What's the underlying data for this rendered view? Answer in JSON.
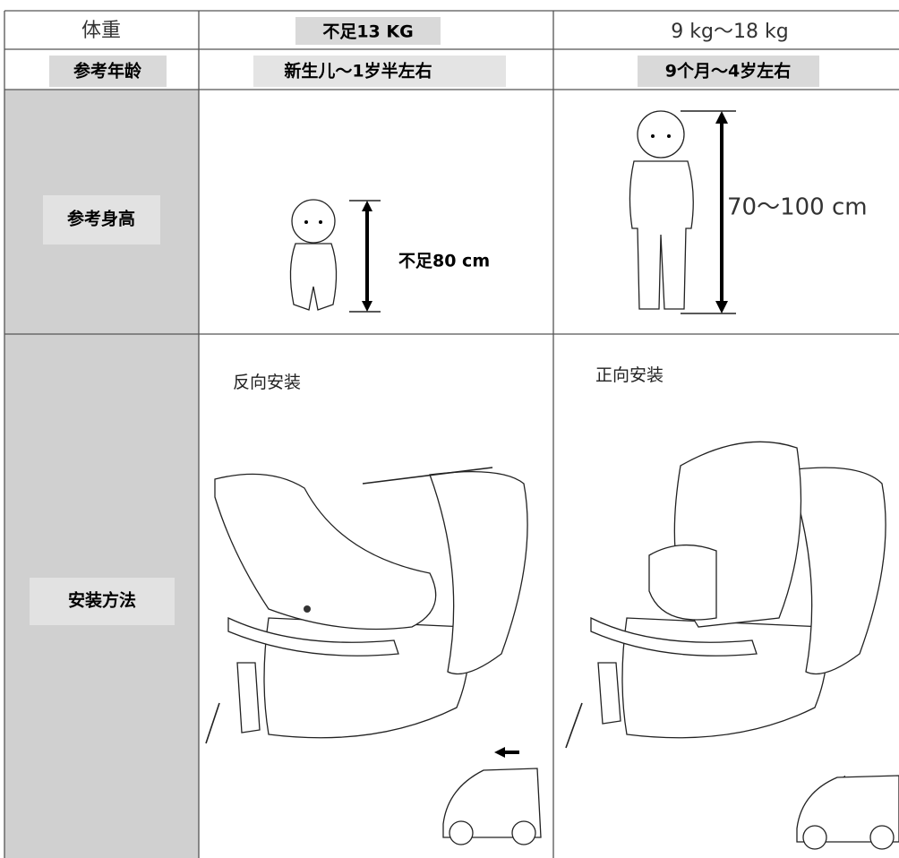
{
  "table": {
    "rows": [
      [
        "体重",
        "不足13 KG",
        "9 kg～18 kg"
      ],
      [
        "参考年龄",
        "新生儿～1岁半左右",
        "9个月～4岁左右"
      ],
      [
        "参考身高",
        "不足80 cm",
        "70～100 cm"
      ],
      [
        "安装方法",
        "反向安装",
        "正向安装"
      ]
    ]
  }
}
